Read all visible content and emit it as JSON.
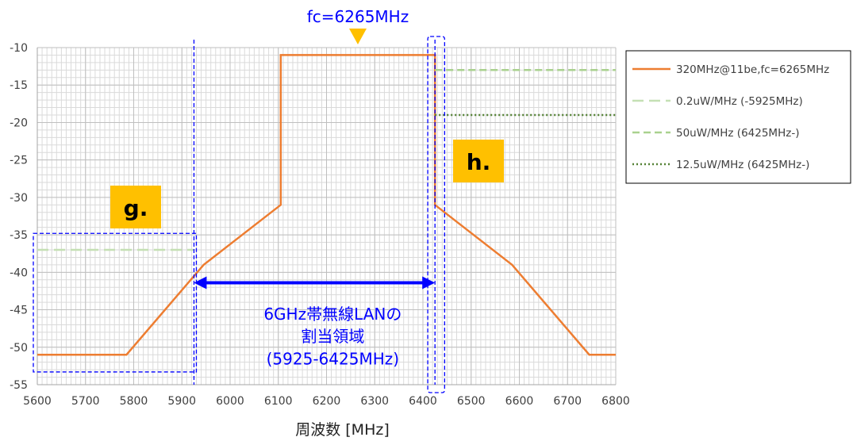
{
  "chart_data": {
    "type": "line",
    "xlabel": "周波数 [MHz]",
    "xlim": [
      5600,
      6800
    ],
    "ylim": [
      -55,
      -10
    ],
    "xticks": [
      5600,
      5700,
      5800,
      5900,
      6000,
      6100,
      6200,
      6300,
      6400,
      6500,
      6600,
      6700,
      6800
    ],
    "yticks": [
      -10,
      -15,
      -20,
      -25,
      -30,
      -35,
      -40,
      -45,
      -50,
      -55
    ],
    "grid": true,
    "legend_position": "right",
    "series": [
      {
        "name": "320MHz@11be,fc=6265MHz",
        "style": "solid",
        "color": "#ED7D31",
        "points": [
          [
            5600,
            -51
          ],
          [
            5785,
            -51
          ],
          [
            5945,
            -39
          ],
          [
            6105,
            -31
          ],
          [
            6105,
            -11
          ],
          [
            6425,
            -11
          ],
          [
            6425,
            -31
          ],
          [
            6585,
            -39
          ],
          [
            6745,
            -51
          ],
          [
            6800,
            -51
          ]
        ]
      },
      {
        "name": "0.2uW/MHz (-5925MHz)",
        "style": "long-dash",
        "color": "#C5E0B4",
        "points": [
          [
            5600,
            -37
          ],
          [
            5925,
            -37
          ]
        ]
      },
      {
        "name": "50uW/MHz (6425MHz-)",
        "style": "dash",
        "color": "#A9D18E",
        "points": [
          [
            6425,
            -13
          ],
          [
            6800,
            -13
          ]
        ]
      },
      {
        "name": "12.5uW/MHz (6425MHz-)",
        "style": "dot",
        "color": "#548235",
        "points": [
          [
            6425,
            -19
          ],
          [
            6800,
            -19
          ]
        ]
      }
    ],
    "annotations": {
      "fc_label": "fc=6265MHz",
      "fc_value": 6265,
      "allocation_label_line1": "6GHz帯無線LANの",
      "allocation_label_line2": "割当領域",
      "allocation_label_line3": "(5925-6425MHz)",
      "allocation_start": 5925,
      "allocation_end": 6425,
      "badge_g": "g.",
      "badge_h": "h."
    },
    "colors": {
      "annotation_blue": "#0000FF",
      "badge_yellow": "#FFC000",
      "grid": "#D9D9D9"
    }
  }
}
